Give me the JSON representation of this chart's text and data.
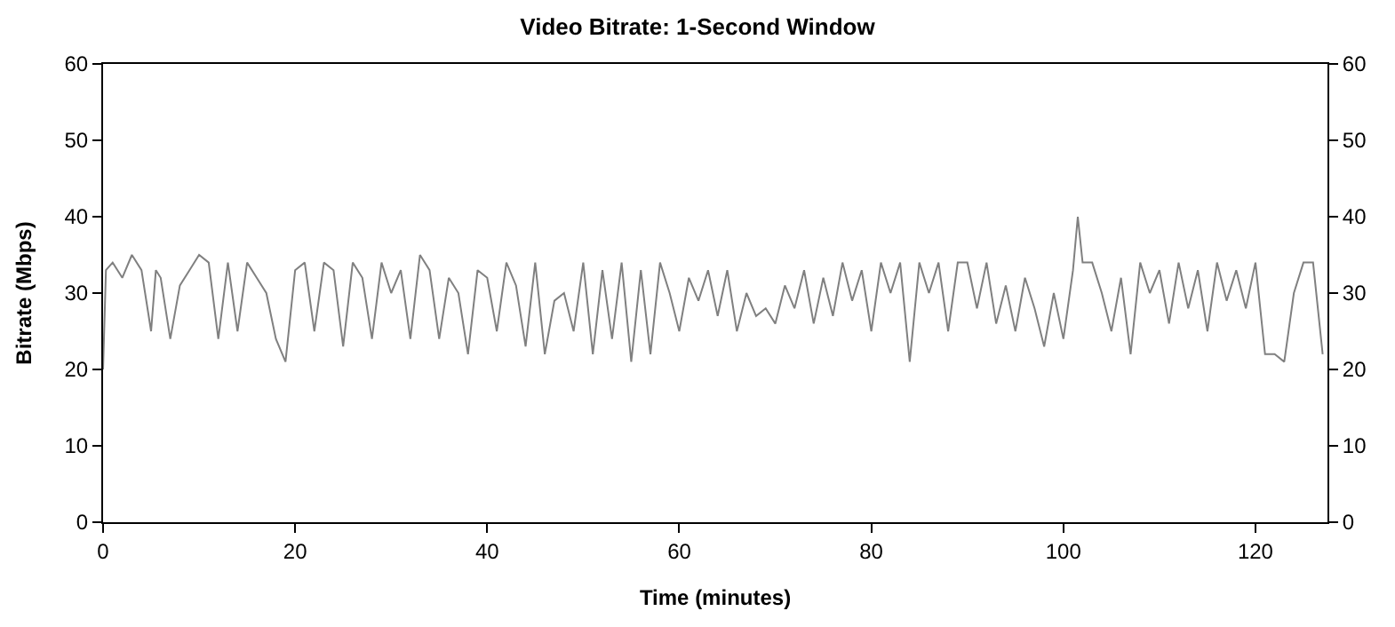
{
  "chart_data": {
    "type": "line",
    "title": "Video Bitrate: 1-Second Window",
    "xlabel": "Time (minutes)",
    "ylabel": "Bitrate (Mbps)",
    "x": [
      0,
      0.3,
      1,
      2,
      3,
      4,
      5,
      5.5,
      6,
      7,
      8,
      9,
      10,
      11,
      12,
      13,
      14,
      15,
      16,
      17,
      18,
      19,
      20,
      21,
      22,
      23,
      24,
      25,
      26,
      27,
      28,
      29,
      30,
      31,
      32,
      33,
      34,
      35,
      36,
      37,
      38,
      39,
      40,
      41,
      42,
      43,
      44,
      45,
      46,
      47,
      48,
      49,
      50,
      51,
      52,
      53,
      54,
      55,
      56,
      57,
      58,
      59,
      60,
      61,
      62,
      63,
      64,
      65,
      66,
      67,
      68,
      69,
      70,
      71,
      72,
      73,
      74,
      75,
      76,
      77,
      78,
      79,
      80,
      81,
      82,
      83,
      84,
      85,
      86,
      87,
      88,
      89,
      90,
      91,
      92,
      93,
      94,
      95,
      96,
      97,
      98,
      99,
      100,
      101,
      101.5,
      102,
      103,
      104,
      105,
      106,
      107,
      108,
      109,
      110,
      111,
      112,
      113,
      114,
      115,
      116,
      117,
      118,
      119,
      120,
      121,
      122,
      123,
      124,
      125,
      126,
      127
    ],
    "series": [
      {
        "color": "#808080",
        "values": [
          20,
          33,
          34,
          32,
          35,
          33,
          25,
          33,
          32,
          24,
          31,
          33,
          35,
          34,
          24,
          34,
          25,
          34,
          32,
          30,
          24,
          21,
          33,
          34,
          25,
          34,
          33,
          23,
          34,
          32,
          24,
          34,
          30,
          33,
          24,
          35,
          33,
          24,
          32,
          30,
          22,
          33,
          32,
          25,
          34,
          31,
          23,
          34,
          22,
          29,
          30,
          25,
          34,
          22,
          33,
          24,
          34,
          21,
          33,
          22,
          34,
          30,
          25,
          32,
          29,
          33,
          27,
          33,
          25,
          30,
          27,
          28,
          26,
          31,
          28,
          33,
          26,
          32,
          27,
          34,
          29,
          33,
          25,
          34,
          30,
          34,
          21,
          34,
          30,
          34,
          25,
          34,
          34,
          28,
          34,
          26,
          31,
          25,
          32,
          28,
          23,
          30,
          24,
          33,
          40,
          34,
          34,
          30,
          25,
          32,
          22,
          34,
          30,
          33,
          26,
          34,
          28,
          33,
          25,
          34,
          29,
          33,
          28,
          34,
          22,
          22,
          21,
          30,
          34,
          34,
          22
        ]
      }
    ],
    "xlim": [
      0,
      127.5
    ],
    "xticks": [
      0,
      20,
      40,
      60,
      80,
      100,
      120
    ],
    "ylim": [
      0,
      60
    ],
    "yticks": [
      0,
      10,
      20,
      30,
      40,
      50,
      60
    ],
    "y2lim": [
      0,
      60
    ],
    "y2ticks": [
      0,
      10,
      20,
      30,
      40,
      50,
      60
    ],
    "marker": "none",
    "line_style": "solid"
  }
}
